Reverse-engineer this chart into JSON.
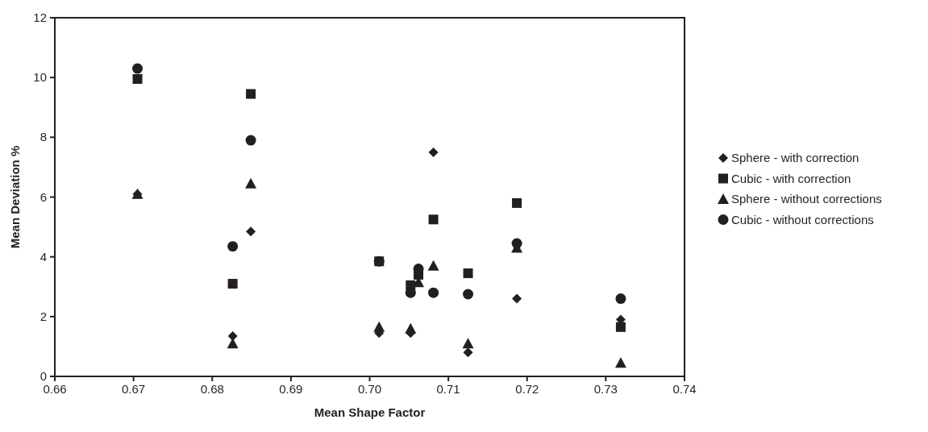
{
  "chart_data": {
    "type": "scatter",
    "xlabel": "Mean Shape Factor",
    "ylabel": "Mean Deviation %",
    "x": [
      0.6705,
      0.6826,
      0.6849,
      0.7012,
      0.7052,
      0.7062,
      0.7081,
      0.7125,
      0.7187,
      0.7319
    ],
    "xlim": [
      0.66,
      0.74
    ],
    "xticks": [
      {
        "value": 0.66,
        "label": "0.66"
      },
      {
        "value": 0.67,
        "label": "0.67"
      },
      {
        "value": 0.68,
        "label": "0.68"
      },
      {
        "value": 0.69,
        "label": "0.69"
      },
      {
        "value": 0.7,
        "label": "0.70"
      },
      {
        "value": 0.71,
        "label": "0.71"
      },
      {
        "value": 0.72,
        "label": "0.72"
      },
      {
        "value": 0.73,
        "label": "0.73"
      },
      {
        "value": 0.74,
        "label": "0.74"
      }
    ],
    "ylim": [
      0,
      12
    ],
    "yticks": [
      0,
      2,
      4,
      6,
      8,
      10,
      12
    ],
    "grid": false,
    "legend": "right",
    "series": [
      {
        "name": "Sphere - with correction",
        "color": "#231f20",
        "marker": "diamond",
        "values": [
          6.1,
          1.35,
          4.85,
          1.45,
          1.45,
          null,
          7.5,
          0.8,
          2.6,
          1.9
        ]
      },
      {
        "name": "Cubic - with correction",
        "color": "#231f20",
        "marker": "square",
        "values": [
          9.95,
          3.1,
          9.45,
          3.85,
          3.05,
          3.4,
          5.25,
          3.45,
          5.8,
          1.65
        ]
      },
      {
        "name": "Sphere - without corrections",
        "color": "#231f20",
        "marker": "triangle",
        "values": [
          6.1,
          1.1,
          6.45,
          1.65,
          1.6,
          3.15,
          3.7,
          1.1,
          4.3,
          0.45
        ]
      },
      {
        "name": "Cubic - without corrections",
        "color": "#231f20",
        "marker": "circle",
        "values": [
          10.3,
          4.35,
          7.9,
          3.85,
          2.8,
          3.6,
          2.8,
          2.75,
          4.45,
          2.6
        ]
      }
    ]
  }
}
